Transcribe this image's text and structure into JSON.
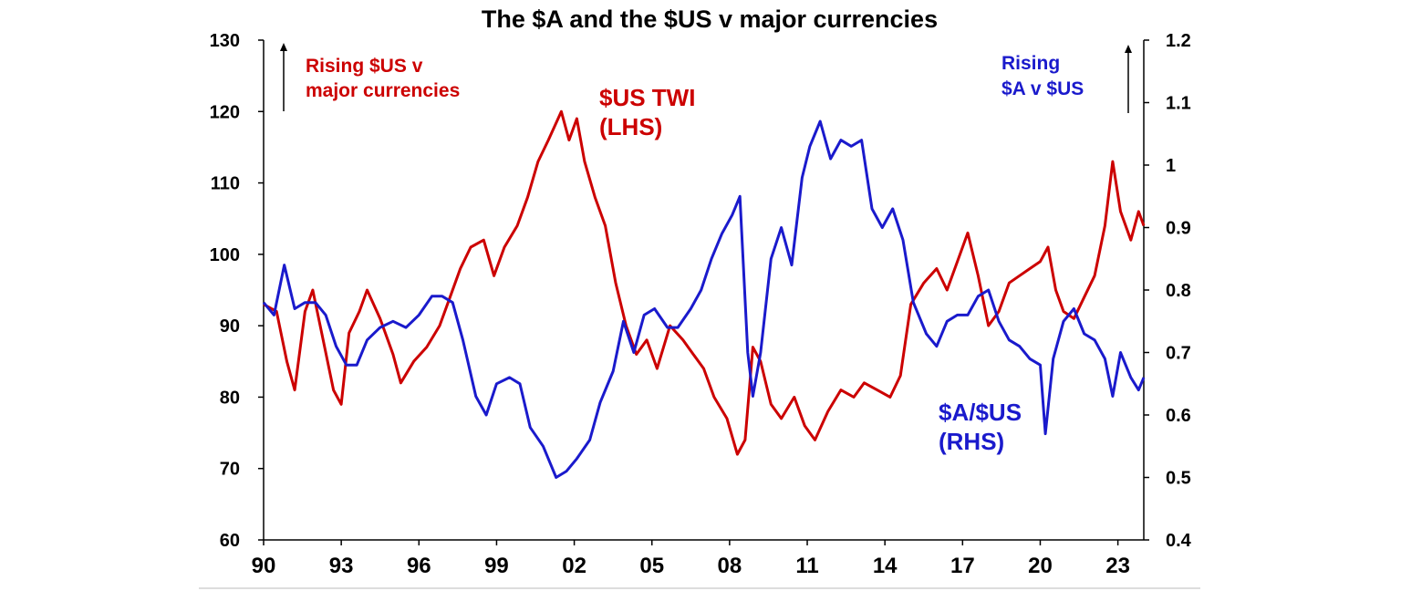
{
  "chart_data": {
    "type": "line",
    "title": "The $A and the $US v major currencies",
    "x_range": [
      1990,
      2024
    ],
    "x_tick_labels": [
      "90",
      "93",
      "96",
      "99",
      "02",
      "05",
      "08",
      "11",
      "14",
      "17",
      "20",
      "23"
    ],
    "x_tick_years": [
      1990,
      1993,
      1996,
      1999,
      2002,
      2005,
      2008,
      2011,
      2014,
      2017,
      2020,
      2023
    ],
    "y_left": {
      "range": [
        60,
        130
      ],
      "ticks": [
        "130",
        "120",
        "110",
        "100",
        "90",
        "80",
        "70",
        "60"
      ],
      "tick_values": [
        130,
        120,
        110,
        100,
        90,
        80,
        70,
        60
      ]
    },
    "y_right": {
      "range": [
        0.4,
        1.2
      ],
      "ticks": [
        "1.2",
        "1.1",
        "1",
        "0.9",
        "0.8",
        "0.7",
        "0.6",
        "0.5",
        "0.4"
      ],
      "tick_values": [
        1.2,
        1.1,
        1.0,
        0.9,
        0.8,
        0.7,
        0.6,
        0.5,
        0.4
      ]
    },
    "series": [
      {
        "name": "$US TWI (LHS)",
        "axis": "left",
        "color": "#CC0000",
        "points": [
          [
            1990.0,
            93
          ],
          [
            1990.5,
            92
          ],
          [
            1990.9,
            85
          ],
          [
            1991.2,
            81
          ],
          [
            1991.6,
            92
          ],
          [
            1991.9,
            95
          ],
          [
            1992.3,
            88
          ],
          [
            1992.7,
            81
          ],
          [
            1993.0,
            79
          ],
          [
            1993.3,
            89
          ],
          [
            1993.7,
            92
          ],
          [
            1994.0,
            95
          ],
          [
            1994.5,
            91
          ],
          [
            1995.0,
            86
          ],
          [
            1995.3,
            82
          ],
          [
            1995.8,
            85
          ],
          [
            1996.3,
            87
          ],
          [
            1996.8,
            90
          ],
          [
            1997.2,
            94
          ],
          [
            1997.6,
            98
          ],
          [
            1998.0,
            101
          ],
          [
            1998.5,
            102
          ],
          [
            1998.9,
            97
          ],
          [
            1999.3,
            101
          ],
          [
            1999.8,
            104
          ],
          [
            2000.2,
            108
          ],
          [
            2000.6,
            113
          ],
          [
            2001.0,
            116
          ],
          [
            2001.5,
            120
          ],
          [
            2001.8,
            116
          ],
          [
            2002.1,
            119
          ],
          [
            2002.4,
            113
          ],
          [
            2002.8,
            108
          ],
          [
            2003.2,
            104
          ],
          [
            2003.6,
            96
          ],
          [
            2004.0,
            90
          ],
          [
            2004.4,
            86
          ],
          [
            2004.8,
            88
          ],
          [
            2005.2,
            84
          ],
          [
            2005.7,
            90
          ],
          [
            2006.2,
            88
          ],
          [
            2006.6,
            86
          ],
          [
            2007.0,
            84
          ],
          [
            2007.4,
            80
          ],
          [
            2007.9,
            77
          ],
          [
            2008.3,
            72
          ],
          [
            2008.6,
            74
          ],
          [
            2008.9,
            87
          ],
          [
            2009.2,
            85
          ],
          [
            2009.6,
            79
          ],
          [
            2010.0,
            77
          ],
          [
            2010.5,
            80
          ],
          [
            2010.9,
            76
          ],
          [
            2011.3,
            74
          ],
          [
            2011.8,
            78
          ],
          [
            2012.3,
            81
          ],
          [
            2012.8,
            80
          ],
          [
            2013.2,
            82
          ],
          [
            2013.7,
            81
          ],
          [
            2014.2,
            80
          ],
          [
            2014.6,
            83
          ],
          [
            2015.0,
            93
          ],
          [
            2015.5,
            96
          ],
          [
            2016.0,
            98
          ],
          [
            2016.4,
            95
          ],
          [
            2016.9,
            100
          ],
          [
            2017.2,
            103
          ],
          [
            2017.6,
            97
          ],
          [
            2018.0,
            90
          ],
          [
            2018.4,
            92
          ],
          [
            2018.8,
            96
          ],
          [
            2019.2,
            97
          ],
          [
            2019.6,
            98
          ],
          [
            2020.0,
            99
          ],
          [
            2020.3,
            101
          ],
          [
            2020.6,
            95
          ],
          [
            2020.9,
            92
          ],
          [
            2021.3,
            91
          ],
          [
            2021.7,
            94
          ],
          [
            2022.1,
            97
          ],
          [
            2022.5,
            104
          ],
          [
            2022.8,
            113
          ],
          [
            2023.1,
            106
          ],
          [
            2023.5,
            102
          ],
          [
            2023.8,
            106
          ],
          [
            2024.0,
            104
          ]
        ]
      },
      {
        "name": "$A/$US (RHS)",
        "axis": "right",
        "color": "#1A1ACC",
        "points": [
          [
            1990.0,
            0.78
          ],
          [
            1990.4,
            0.76
          ],
          [
            1990.8,
            0.84
          ],
          [
            1991.2,
            0.77
          ],
          [
            1991.6,
            0.78
          ],
          [
            1992.0,
            0.78
          ],
          [
            1992.4,
            0.76
          ],
          [
            1992.8,
            0.71
          ],
          [
            1993.2,
            0.68
          ],
          [
            1993.6,
            0.68
          ],
          [
            1994.0,
            0.72
          ],
          [
            1994.5,
            0.74
          ],
          [
            1995.0,
            0.75
          ],
          [
            1995.5,
            0.74
          ],
          [
            1996.0,
            0.76
          ],
          [
            1996.5,
            0.79
          ],
          [
            1996.9,
            0.79
          ],
          [
            1997.3,
            0.78
          ],
          [
            1997.7,
            0.72
          ],
          [
            1998.2,
            0.63
          ],
          [
            1998.6,
            0.6
          ],
          [
            1999.0,
            0.65
          ],
          [
            1999.5,
            0.66
          ],
          [
            1999.9,
            0.65
          ],
          [
            2000.3,
            0.58
          ],
          [
            2000.8,
            0.55
          ],
          [
            2001.3,
            0.5
          ],
          [
            2001.7,
            0.51
          ],
          [
            2002.1,
            0.53
          ],
          [
            2002.6,
            0.56
          ],
          [
            2003.0,
            0.62
          ],
          [
            2003.5,
            0.67
          ],
          [
            2003.9,
            0.75
          ],
          [
            2004.3,
            0.7
          ],
          [
            2004.7,
            0.76
          ],
          [
            2005.1,
            0.77
          ],
          [
            2005.6,
            0.74
          ],
          [
            2006.0,
            0.74
          ],
          [
            2006.5,
            0.77
          ],
          [
            2006.9,
            0.8
          ],
          [
            2007.3,
            0.85
          ],
          [
            2007.7,
            0.89
          ],
          [
            2008.1,
            0.92
          ],
          [
            2008.4,
            0.95
          ],
          [
            2008.7,
            0.7
          ],
          [
            2008.9,
            0.63
          ],
          [
            2009.2,
            0.7
          ],
          [
            2009.6,
            0.85
          ],
          [
            2010.0,
            0.9
          ],
          [
            2010.4,
            0.84
          ],
          [
            2010.8,
            0.98
          ],
          [
            2011.1,
            1.03
          ],
          [
            2011.5,
            1.07
          ],
          [
            2011.9,
            1.01
          ],
          [
            2012.3,
            1.04
          ],
          [
            2012.7,
            1.03
          ],
          [
            2013.1,
            1.04
          ],
          [
            2013.5,
            0.93
          ],
          [
            2013.9,
            0.9
          ],
          [
            2014.3,
            0.93
          ],
          [
            2014.7,
            0.88
          ],
          [
            2015.1,
            0.78
          ],
          [
            2015.6,
            0.73
          ],
          [
            2016.0,
            0.71
          ],
          [
            2016.4,
            0.75
          ],
          [
            2016.8,
            0.76
          ],
          [
            2017.2,
            0.76
          ],
          [
            2017.6,
            0.79
          ],
          [
            2018.0,
            0.8
          ],
          [
            2018.4,
            0.75
          ],
          [
            2018.8,
            0.72
          ],
          [
            2019.2,
            0.71
          ],
          [
            2019.6,
            0.69
          ],
          [
            2020.0,
            0.68
          ],
          [
            2020.2,
            0.57
          ],
          [
            2020.5,
            0.69
          ],
          [
            2020.9,
            0.75
          ],
          [
            2021.3,
            0.77
          ],
          [
            2021.7,
            0.73
          ],
          [
            2022.1,
            0.72
          ],
          [
            2022.5,
            0.69
          ],
          [
            2022.8,
            0.63
          ],
          [
            2023.1,
            0.7
          ],
          [
            2023.5,
            0.66
          ],
          [
            2023.8,
            0.64
          ],
          [
            2024.0,
            0.66
          ]
        ]
      }
    ],
    "annotations": {
      "rising_us_line1": "Rising $US v",
      "rising_us_line2": "major currencies",
      "us_twi_line1": "$US TWI",
      "us_twi_line2": "(LHS)",
      "rising_a_line1": "Rising",
      "rising_a_line2": "$A v $US",
      "a_us_line1": "$A/$US",
      "a_us_line2": "(RHS)"
    },
    "colors": {
      "red": "#CC0000",
      "blue": "#1A1ACC"
    }
  }
}
